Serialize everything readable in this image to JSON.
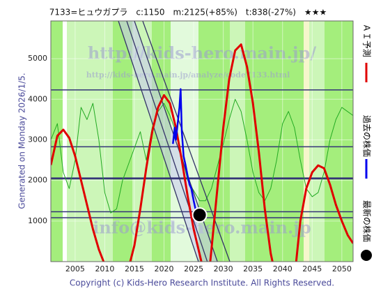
{
  "chart_data": {
    "type": "line",
    "title": "7133=ヒュウガプラ　c:1150　m:2125(+85%)　t:838(-27%)　★★★",
    "annotation": "Generated on Monday 2026/1/5.",
    "footer": "Copyright (c) Kids-Hero Research Institute. All Rights Reserved.",
    "watermarks": [
      "http://kids-hero.main.jp/",
      "http://kids-hero.main.jp/analyze/code7133.html",
      "info@kids-hero.main.jp"
    ],
    "xlim": [
      2000.9,
      2051.9
    ],
    "ylim": [
      0,
      5930
    ],
    "xticks": [
      2005,
      2010,
      2015,
      2020,
      2025,
      2030,
      2035,
      2040,
      2045,
      2050
    ],
    "yticks": [
      1000,
      2000,
      3000,
      4000,
      5000
    ],
    "grid": true,
    "series": [
      {
        "name": "ＡＩ予測",
        "color": "#e00000",
        "x": [
          2000.9,
          2002,
          2003,
          2004,
          2005,
          2006,
          2007,
          2008,
          2009,
          2009.8,
          2012,
          2014.3,
          2015,
          2016,
          2017,
          2018,
          2019,
          2020,
          2021,
          2022,
          2023,
          2024,
          2025,
          2026.3,
          2027,
          2027.8,
          2029,
          2030,
          2031,
          2032,
          2033,
          2034,
          2035,
          2036,
          2037,
          2038,
          2038.3,
          2040,
          2042.3,
          2043,
          2044,
          2045,
          2046,
          2047,
          2048,
          2049,
          2050,
          2051,
          2051.9
        ],
        "values": [
          2380,
          3100,
          3250,
          3050,
          2600,
          2000,
          1400,
          800,
          300,
          0,
          null,
          0,
          400,
          1300,
          2300,
          3200,
          3800,
          4100,
          3900,
          3300,
          2500,
          1600,
          800,
          0,
          null,
          0,
          1800,
          3300,
          4500,
          5200,
          5350,
          4800,
          3900,
          2700,
          1300,
          200,
          0,
          null,
          0,
          1000,
          1800,
          2200,
          2370,
          2300,
          1900,
          1400,
          1000,
          650,
          450
        ]
      },
      {
        "name": "過去の株価",
        "color": "#0000ee",
        "x": [
          2021.5,
          2021.8,
          2022,
          2022.3,
          2022.6,
          2022.8,
          2023,
          2023.3,
          2023.6,
          2024,
          2024.3,
          2024.6,
          2025,
          2025.3,
          2025.6,
          2026
        ],
        "values": [
          2900,
          3300,
          3000,
          3400,
          3800,
          4250,
          3200,
          2600,
          2400,
          2100,
          1900,
          1800,
          1500,
          1300,
          1200,
          1150
        ]
      },
      {
        "color": "#22aa22",
        "x": [
          2000.9,
          2002,
          2003,
          2004,
          2005,
          2006,
          2007,
          2008,
          2009,
          2010,
          2011,
          2012,
          2013,
          2014,
          2015,
          2016,
          2017,
          2018,
          2019,
          2020,
          2021,
          2022,
          2024,
          2026,
          2027,
          2028,
          2030,
          2031,
          2032,
          2033,
          2034,
          2035,
          2036,
          2037,
          2038,
          2039,
          2040,
          2041,
          2042,
          2043,
          2044,
          2045,
          2046,
          2047,
          2048,
          2049,
          2050,
          2051.9
        ],
        "values": [
          3000,
          3400,
          2200,
          1800,
          2500,
          3800,
          3500,
          3900,
          3000,
          1700,
          1200,
          1300,
          2000,
          2400,
          2800,
          3200,
          2500,
          3300,
          3700,
          3900,
          3600,
          3200,
          2000,
          1500,
          1500,
          1800,
          2900,
          3500,
          4000,
          3700,
          3000,
          2200,
          1700,
          1500,
          1800,
          2500,
          3400,
          3700,
          3300,
          2500,
          1800,
          1600,
          1700,
          2200,
          3000,
          3500,
          3800,
          3600
        ]
      }
    ],
    "current": {
      "name": "最新の株価",
      "x": 2026,
      "value": 1150,
      "color": "#000000"
    },
    "levels": [
      4230,
      2830,
      2060,
      2040,
      1230,
      1080
    ],
    "level_color": "#333377",
    "trend_color": "#333366",
    "trend_lines": [
      {
        "x": [
          2012.3,
          2025.8
        ],
        "y": [
          5930,
          0
        ]
      },
      {
        "x": [
          2013.7,
          2027.3
        ],
        "y": [
          5930,
          0
        ]
      },
      {
        "x": [
          2015.0,
          2029.0
        ],
        "y": [
          5930,
          0
        ]
      },
      {
        "x": [
          2016.4,
          2031.1
        ],
        "y": [
          5930,
          0
        ]
      }
    ]
  }
}
